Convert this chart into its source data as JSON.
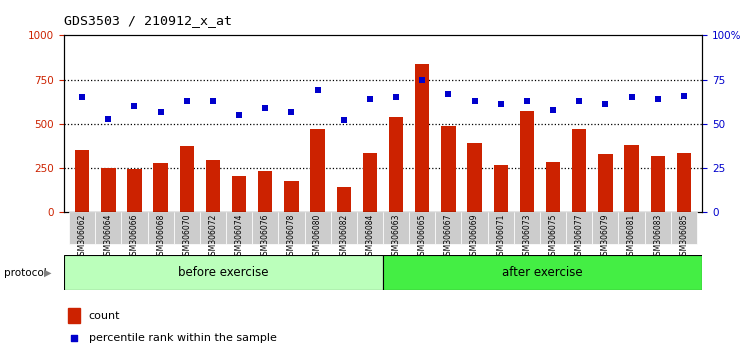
{
  "title": "GDS3503 / 210912_x_at",
  "categories": [
    "GSM306062",
    "GSM306064",
    "GSM306066",
    "GSM306068",
    "GSM306070",
    "GSM306072",
    "GSM306074",
    "GSM306076",
    "GSM306078",
    "GSM306080",
    "GSM306082",
    "GSM306084",
    "GSM306063",
    "GSM306065",
    "GSM306067",
    "GSM306069",
    "GSM306071",
    "GSM306073",
    "GSM306075",
    "GSM306077",
    "GSM306079",
    "GSM306081",
    "GSM306083",
    "GSM306085"
  ],
  "count_values": [
    350,
    252,
    248,
    277,
    375,
    295,
    205,
    232,
    175,
    470,
    145,
    335,
    540,
    840,
    490,
    390,
    270,
    575,
    285,
    470,
    328,
    378,
    320,
    338
  ],
  "percentile_values": [
    65,
    53,
    60,
    57,
    63,
    63,
    55,
    59,
    57,
    69,
    52,
    64,
    65,
    75,
    67,
    63,
    61,
    63,
    58,
    63,
    61,
    65,
    64,
    66
  ],
  "bar_color": "#cc2200",
  "dot_color": "#0000cc",
  "before_count": 12,
  "after_count": 12,
  "before_color": "#bbffbb",
  "after_color": "#44ee44",
  "protocol_label": "protocol",
  "before_label": "before exercise",
  "after_label": "after exercise",
  "legend_count_label": "count",
  "legend_pct_label": "percentile rank within the sample",
  "ylim_left": [
    0,
    1000
  ],
  "ylim_right": [
    0,
    100
  ],
  "yticks_left": [
    0,
    250,
    500,
    750,
    1000
  ],
  "yticks_right": [
    0,
    25,
    50,
    75,
    100
  ],
  "right_tick_labels": [
    "0",
    "25",
    "50",
    "75",
    "100%"
  ],
  "dotted_lines": [
    250,
    500,
    750
  ]
}
